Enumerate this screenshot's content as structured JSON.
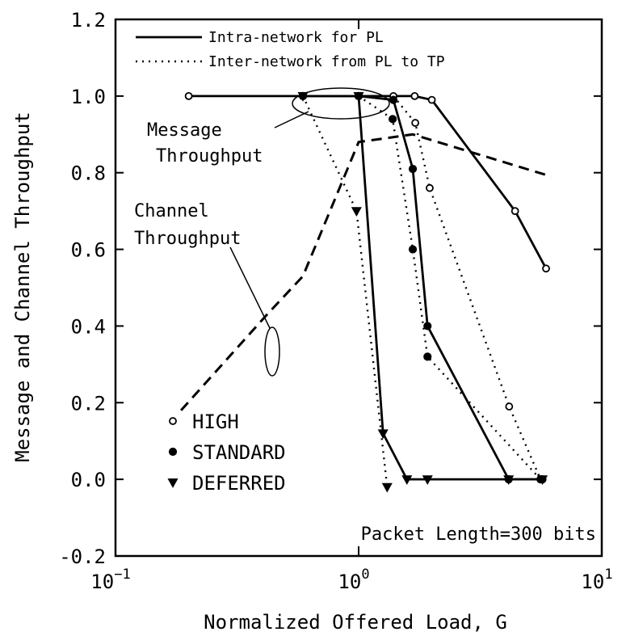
{
  "chart_data": {
    "type": "line",
    "xlabel": "Normalized Offered Load,  G",
    "ylabel": "Message and Channel Throughput",
    "xscale": "log",
    "xlim": [
      0.1,
      10
    ],
    "ylim": [
      -0.2,
      1.2
    ],
    "xticks": [
      {
        "value": 0.1,
        "label": [
          "10",
          "−1"
        ]
      },
      {
        "value": 1,
        "label": [
          "10",
          "0"
        ]
      },
      {
        "value": 10,
        "label": [
          "10",
          "1"
        ]
      }
    ],
    "yticks": [
      -0.2,
      {
        "value": 0,
        "label": "0.0"
      },
      0.2,
      0.4,
      0.6,
      0.8,
      {
        "value": 1,
        "label": "1.0"
      },
      1.2
    ],
    "color": "#000000",
    "line_legend": [
      {
        "label": "Intra-network for PL",
        "dash": "solid"
      },
      {
        "label": "Inter-network from PL to TP",
        "dash": "dotted"
      }
    ],
    "marker_legend": [
      {
        "label": "HIGH",
        "marker": "open-circle"
      },
      {
        "label": "STANDARD",
        "marker": "filled-circle"
      },
      {
        "label": "DEFERRED",
        "marker": "triangle"
      }
    ],
    "annotations": [
      "Message",
      "Throughput",
      "Channel",
      "Throughput",
      "Packet Length=300 bits"
    ],
    "series": [
      {
        "dash": "solid",
        "marker": "open-circle",
        "x": [
          0.2,
          1.7,
          2.0,
          4.4,
          5.9
        ],
        "values": [
          1.0,
          1.0,
          0.99,
          0.7,
          0.55
        ]
      },
      {
        "dash": "dotted",
        "marker": "open-circle",
        "x": [
          1.39,
          1.71,
          1.96,
          4.16,
          5.6
        ],
        "values": [
          1.0,
          0.93,
          0.76,
          0.19,
          0.0
        ]
      },
      {
        "dash": "solid",
        "marker": "filled-circle",
        "x": [
          0.59,
          1.0,
          1.39,
          1.67,
          1.92,
          4.14,
          5.7
        ],
        "values": [
          1.0,
          1.0,
          0.99,
          0.81,
          0.4,
          0.0,
          0.0
        ]
      },
      {
        "dash": "dotted",
        "marker": "filled-circle",
        "x": [
          1.0,
          1.38,
          1.67,
          1.92,
          5.6
        ],
        "values": [
          1.0,
          0.94,
          0.6,
          0.32,
          0.0
        ]
      },
      {
        "dash": "solid",
        "marker": "triangle",
        "x": [
          1.0,
          1.26,
          1.58,
          1.92,
          4.14,
          5.7
        ],
        "values": [
          1.0,
          0.12,
          0.0,
          0.0,
          0.0,
          0.0
        ]
      },
      {
        "dash": "dotted",
        "marker": "triangle",
        "x": [
          0.59,
          0.98,
          1.31
        ],
        "values": [
          1.0,
          0.7,
          -0.02
        ]
      },
      {
        "dash": "dashed",
        "marker": "none",
        "x": [
          0.186,
          0.42,
          0.59,
          1.0,
          1.67,
          6.2
        ],
        "values": [
          0.18,
          0.43,
          0.53,
          0.88,
          0.9,
          0.79
        ]
      }
    ]
  }
}
